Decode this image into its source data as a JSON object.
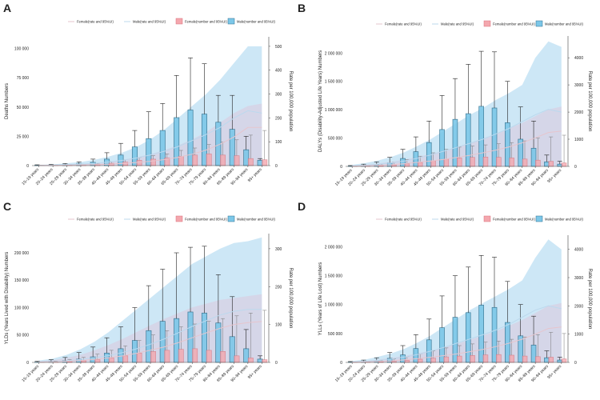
{
  "colors": {
    "female_fill": "#f4a7ae",
    "female_stroke": "#d9707b",
    "male_fill": "#7cc7e8",
    "male_stroke": "#2d6f8e",
    "male_rate_area": "#c4e3f4",
    "female_rate_area": "#d9cfe3",
    "male_rate_line": "#bcd9ee",
    "female_rate_line": "#e6c5cd",
    "axis": "#444444",
    "error_bar": "#222222"
  },
  "age_groups": [
    "15–19 years",
    "20–24 years",
    "25–29 years",
    "30–34 years",
    "35–39 years",
    "40–44 years",
    "45–49 years",
    "50–54 years",
    "55–59 years",
    "60–64 years",
    "65–69 years",
    "70–74 years",
    "75–79 years",
    "80–84 years",
    "85–89 years",
    "90–94 years",
    "95+ years"
  ],
  "legend": {
    "female_rate": "Female(rate and 95%UI)",
    "male_rate": "Male(rate and 95%UI)",
    "female_number": "Female(number and 95%UI)",
    "male_number": "Male(number and 95%UI)"
  },
  "chart_data": [
    {
      "panel": "A",
      "type": "bar",
      "ylabel": "Deaths Numbers",
      "y2label": "Rate per 100,000 population",
      "ylim": [
        0,
        110000
      ],
      "yticks": [
        0,
        25000,
        50000,
        75000,
        100000
      ],
      "ytick_labels": [
        "0",
        "25 000",
        "50 000",
        "75 000",
        "100 000"
      ],
      "y2lim": [
        0,
        540
      ],
      "y2ticks": [
        0,
        100,
        200,
        300,
        400,
        500
      ],
      "y2tick_labels": [
        "0",
        "100",
        "200",
        "300",
        "400",
        "500"
      ],
      "male_number": [
        300,
        500,
        900,
        1500,
        2800,
        5500,
        9000,
        16000,
        23000,
        30000,
        41000,
        47500,
        44000,
        37000,
        31000,
        13500,
        4500
      ],
      "male_number_upper": [
        700,
        1100,
        1800,
        3200,
        5500,
        11000,
        19000,
        30000,
        46000,
        53000,
        77000,
        92000,
        87000,
        60000,
        60000,
        25000,
        6000
      ],
      "female_number": [
        200,
        300,
        500,
        700,
        1200,
        2000,
        3000,
        4500,
        5500,
        6500,
        8000,
        9000,
        10000,
        9000,
        8500,
        6000,
        5000
      ],
      "female_number_upper": [
        400,
        600,
        900,
        1300,
        2000,
        3500,
        5000,
        7000,
        8500,
        10000,
        13000,
        15000,
        18000,
        20000,
        22000,
        26000,
        30000
      ],
      "male_rate": [
        1,
        2,
        4,
        6,
        9,
        15,
        22,
        32,
        45,
        60,
        80,
        105,
        130,
        160,
        200,
        230,
        220
      ],
      "male_rate_upper": [
        3,
        5,
        10,
        15,
        24,
        38,
        55,
        78,
        110,
        150,
        200,
        250,
        300,
        360,
        430,
        500,
        500
      ],
      "female_rate": [
        0.5,
        1,
        2,
        3,
        4,
        6,
        9,
        13,
        18,
        25,
        35,
        48,
        65,
        90,
        120,
        160,
        160
      ],
      "female_rate_upper": [
        2,
        3,
        5,
        7,
        10,
        16,
        24,
        35,
        48,
        65,
        85,
        110,
        140,
        180,
        220,
        250,
        260
      ]
    },
    {
      "panel": "B",
      "type": "bar",
      "ylabel": "DALYs (Disability-Adjusted Life Years) Numbers",
      "y2label": "Rate per 100,000 population",
      "ylim": [
        0,
        2300000
      ],
      "yticks": [
        0,
        500000,
        1000000,
        1500000,
        2000000
      ],
      "ytick_labels": [
        "0",
        "500 000",
        "1 000 000",
        "1 500 000",
        "2 000 000"
      ],
      "y2lim": [
        0,
        4800
      ],
      "y2ticks": [
        0,
        1000,
        2000,
        3000,
        4000
      ],
      "y2tick_labels": [
        "0",
        "1000",
        "2000",
        "3000",
        "4000"
      ],
      "male_number": [
        6000,
        15000,
        30000,
        60000,
        140000,
        260000,
        420000,
        650000,
        830000,
        930000,
        1060000,
        1030000,
        770000,
        480000,
        320000,
        80000,
        40000
      ],
      "male_number_upper": [
        15000,
        40000,
        80000,
        160000,
        300000,
        520000,
        800000,
        1250000,
        1550000,
        1800000,
        2030000,
        2020000,
        1500000,
        1050000,
        800000,
        200000,
        90000
      ],
      "female_number": [
        3000,
        8000,
        15000,
        25000,
        45000,
        70000,
        100000,
        130000,
        150000,
        160000,
        165000,
        160000,
        150000,
        130000,
        110000,
        90000,
        60000
      ],
      "female_number_upper": [
        8000,
        20000,
        40000,
        70000,
        120000,
        180000,
        240000,
        300000,
        340000,
        360000,
        380000,
        400000,
        420000,
        450000,
        500000,
        520000,
        550000
      ],
      "male_rate": [
        20,
        40,
        80,
        130,
        200,
        300,
        420,
        560,
        700,
        850,
        1000,
        1200,
        1400,
        1650,
        1900,
        2100,
        2000
      ],
      "male_rate_upper": [
        60,
        120,
        220,
        350,
        520,
        750,
        1000,
        1300,
        1600,
        1900,
        2150,
        2450,
        2700,
        3000,
        4000,
        4600,
        4400
      ],
      "female_rate": [
        10,
        20,
        40,
        60,
        100,
        150,
        200,
        260,
        330,
        410,
        500,
        600,
        720,
        870,
        1050,
        1250,
        1300
      ],
      "female_rate_upper": [
        30,
        60,
        110,
        170,
        250,
        350,
        460,
        580,
        720,
        870,
        1030,
        1200,
        1400,
        1600,
        1850,
        2100,
        2200
      ]
    },
    {
      "panel": "C",
      "type": "bar",
      "ylabel": "YLDs (Years Lived with Disability) Numbers",
      "y2label": "Rate per 100,000 population",
      "ylim": [
        0,
        235000
      ],
      "yticks": [
        0,
        50000,
        100000,
        150000,
        200000
      ],
      "ytick_labels": [
        "0",
        "50 000",
        "100 000",
        "150 000",
        "200 000"
      ],
      "y2lim": [
        0,
        340
      ],
      "y2ticks": [
        0,
        100,
        200,
        300
      ],
      "y2tick_labels": [
        "0",
        "100",
        "200",
        "300"
      ],
      "male_number": [
        500,
        1500,
        3000,
        6000,
        10000,
        17000,
        25000,
        40000,
        58000,
        75000,
        80000,
        92000,
        90000,
        72000,
        47000,
        25000,
        6000
      ],
      "male_number_upper": [
        2000,
        5000,
        9000,
        18000,
        28000,
        45000,
        65000,
        100000,
        140000,
        170000,
        200000,
        210000,
        212000,
        160000,
        120000,
        60000,
        12000
      ],
      "female_number": [
        300,
        800,
        1500,
        3000,
        5000,
        8000,
        12000,
        17000,
        20000,
        22000,
        24000,
        25000,
        22000,
        20000,
        12000,
        8000,
        5000
      ],
      "female_number_upper": [
        1000,
        2500,
        5000,
        9000,
        15000,
        22000,
        30000,
        40000,
        50000,
        58000,
        65000,
        70000,
        75000,
        80000,
        85000,
        90000,
        95000
      ],
      "male_rate": [
        1,
        2,
        4,
        8,
        12,
        18,
        26,
        36,
        48,
        62,
        78,
        95,
        110,
        125,
        135,
        140,
        140
      ],
      "male_rate_upper": [
        5,
        10,
        20,
        35,
        55,
        80,
        110,
        140,
        170,
        200,
        230,
        260,
        280,
        300,
        315,
        320,
        330
      ],
      "female_rate": [
        0.5,
        1,
        3,
        5,
        8,
        12,
        17,
        24,
        32,
        41,
        52,
        65,
        78,
        90,
        100,
        105,
        108
      ],
      "female_rate_upper": [
        3,
        6,
        12,
        20,
        32,
        46,
        62,
        80,
        98,
        115,
        130,
        145,
        155,
        165,
        170,
        175,
        180
      ]
    },
    {
      "panel": "D",
      "type": "bar",
      "ylabel": "YLLs (Years of Life Lost) Numbers",
      "y2label": "Rate per 100,000 population",
      "ylim": [
        0,
        2200000
      ],
      "yticks": [
        0,
        500000,
        1000000,
        1500000,
        2000000
      ],
      "ytick_labels": [
        "0",
        "500 000",
        "1 000 000",
        "1 500 000",
        "2 000 000"
      ],
      "y2lim": [
        0,
        4500
      ],
      "y2ticks": [
        0,
        1000,
        2000,
        3000,
        4000
      ],
      "y2tick_labels": [
        "0",
        "1000",
        "2000",
        "3000",
        "4000"
      ],
      "male_number": [
        5000,
        15000,
        30000,
        70000,
        130000,
        240000,
        390000,
        600000,
        780000,
        860000,
        990000,
        950000,
        690000,
        460000,
        300000,
        80000,
        40000
      ],
      "male_number_upper": [
        15000,
        40000,
        80000,
        170000,
        290000,
        480000,
        750000,
        1150000,
        1500000,
        1650000,
        1850000,
        1820000,
        1400000,
        1000000,
        800000,
        200000,
        90000
      ],
      "female_number": [
        3000,
        7000,
        12000,
        20000,
        35000,
        55000,
        75000,
        95000,
        110000,
        120000,
        130000,
        135000,
        125000,
        110000,
        100000,
        90000,
        60000
      ],
      "female_number_upper": [
        8000,
        20000,
        35000,
        60000,
        100000,
        150000,
        200000,
        250000,
        290000,
        320000,
        350000,
        370000,
        400000,
        440000,
        480000,
        520000,
        500000
      ],
      "male_rate": [
        15,
        35,
        70,
        120,
        190,
        280,
        400,
        530,
        680,
        830,
        980,
        1150,
        1350,
        1600,
        1850,
        2000,
        1900
      ],
      "male_rate_upper": [
        50,
        100,
        200,
        320,
        480,
        700,
        950,
        1250,
        1550,
        1850,
        2100,
        2350,
        2600,
        2900,
        3700,
        4350,
        4000
      ],
      "female_rate": [
        8,
        18,
        35,
        55,
        90,
        135,
        185,
        240,
        300,
        380,
        460,
        560,
        680,
        820,
        1000,
        1200,
        1250
      ],
      "female_rate_upper": [
        25,
        55,
        100,
        160,
        230,
        320,
        420,
        530,
        660,
        800,
        950,
        1100,
        1300,
        1500,
        1750,
        2000,
        2100
      ]
    }
  ]
}
